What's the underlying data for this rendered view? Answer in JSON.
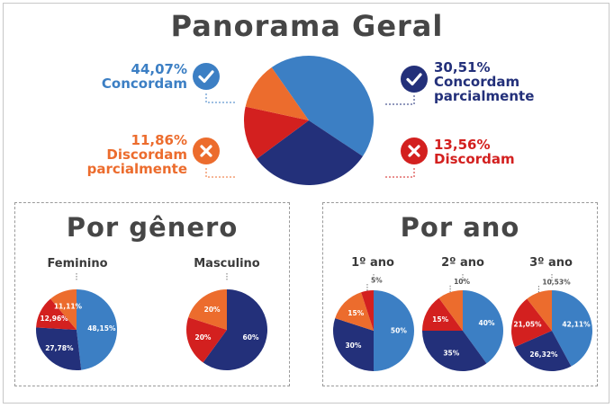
{
  "title": "Panorama Geral",
  "colors": {
    "concordam": "#3c7fc4",
    "concordam_parcialmente": "#23307a",
    "discordam": "#d3201f",
    "discordam_parcialmente": "#ec6c2d",
    "title": "#464646"
  },
  "legend": {
    "concordam": {
      "pct": "44,07%",
      "label": "Concordam",
      "icon": "check-icon"
    },
    "concordam_parcialmente": {
      "pct": "30,51%",
      "line1": "Concordam",
      "line2": "parcialmente",
      "icon": "check-icon"
    },
    "discordam_parcialmente": {
      "pct": "11,86%",
      "line1": "Discordam",
      "line2": "parcialmente",
      "icon": "x-icon"
    },
    "discordam": {
      "pct": "13,56%",
      "label": "Discordam",
      "icon": "x-icon"
    }
  },
  "sections": {
    "genero": {
      "title": "Por gênero"
    },
    "ano": {
      "title": "Por ano"
    }
  },
  "chart_data": [
    {
      "type": "pie",
      "title": "Panorama Geral",
      "categories": [
        "Concordam",
        "Concordam parcialmente",
        "Discordam",
        "Discordam parcialmente"
      ],
      "values": [
        44.07,
        30.51,
        13.56,
        11.86
      ]
    },
    {
      "type": "pie",
      "title": "Feminino",
      "categories": [
        "Concordam",
        "Concordam parcialmente",
        "Discordam",
        "Discordam parcialmente"
      ],
      "values": [
        48.15,
        27.78,
        12.96,
        11.11
      ],
      "labels": [
        "48,15%",
        "27,78%",
        "12,96%",
        "11,11%"
      ]
    },
    {
      "type": "pie",
      "title": "Masculino",
      "categories": [
        "Concordam parcialmente",
        "Discordam",
        "Discordam parcialmente"
      ],
      "values": [
        60,
        20,
        20
      ],
      "labels": [
        "60%",
        "20%",
        "20%"
      ]
    },
    {
      "type": "pie",
      "title": "1º ano",
      "categories": [
        "Concordam",
        "Concordam parcialmente",
        "Discordam parcialmente",
        "Discordam"
      ],
      "values": [
        50,
        30,
        15,
        5
      ],
      "labels": [
        "50%",
        "30%",
        "15%",
        "5%"
      ]
    },
    {
      "type": "pie",
      "title": "2º ano",
      "categories": [
        "Concordam",
        "Concordam parcialmente",
        "Discordam",
        "Discordam parcialmente"
      ],
      "values": [
        40,
        35,
        15,
        10
      ],
      "labels": [
        "40%",
        "35%",
        "15%",
        "10%"
      ]
    },
    {
      "type": "pie",
      "title": "3º ano",
      "categories": [
        "Concordam",
        "Concordam parcialmente",
        "Discordam",
        "Discordam parcialmente"
      ],
      "values": [
        42.11,
        26.32,
        21.05,
        10.53
      ],
      "labels": [
        "42,11%",
        "26,32%",
        "21,05%",
        "10,53%"
      ]
    }
  ]
}
